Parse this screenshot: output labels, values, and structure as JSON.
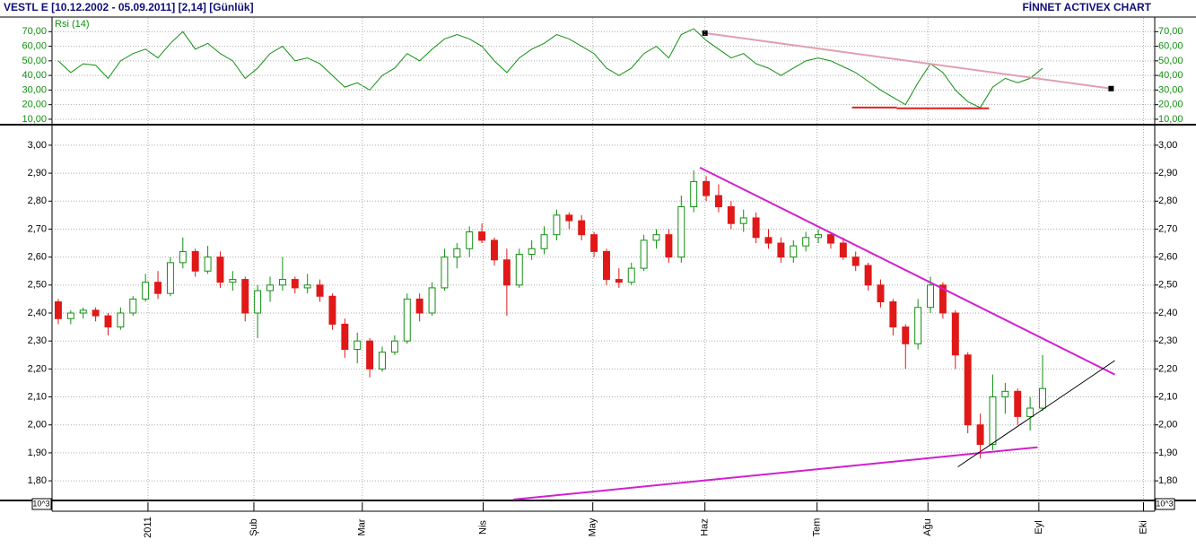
{
  "header": {
    "title": "VESTL E  [10.12.2002 - 05.09.2011]  [2,14]  [Günlük]",
    "brand": "FİNNET ACTIVEX CHART"
  },
  "chart_data": [
    {
      "type": "line",
      "label": "Rsi (14)",
      "color": "#109010",
      "ylim": [
        6.9,
        79.4
      ],
      "xlim": [
        -0.5,
        88
      ],
      "yticks": [
        {
          "value": 10,
          "label": "10,00"
        },
        {
          "value": 20,
          "label": "20,00"
        },
        {
          "value": 30,
          "label": "30,00"
        },
        {
          "value": 40,
          "label": "40,00"
        },
        {
          "value": 50,
          "label": "50,00"
        },
        {
          "value": 60,
          "label": "60,00"
        },
        {
          "value": 70,
          "label": "70,00"
        }
      ],
      "values": [
        50,
        42,
        48,
        47,
        38,
        50,
        55,
        58,
        52,
        62,
        70,
        58,
        62,
        55,
        50,
        38,
        45,
        55,
        60,
        50,
        52,
        48,
        40,
        32,
        35,
        30,
        40,
        45,
        55,
        50,
        58,
        65,
        68,
        65,
        60,
        50,
        42,
        52,
        58,
        62,
        68,
        65,
        60,
        55,
        45,
        40,
        45,
        55,
        60,
        52,
        68,
        72,
        64,
        58,
        52,
        55,
        48,
        45,
        40,
        45,
        50,
        52,
        50,
        46,
        42,
        36,
        30,
        25,
        20,
        35,
        48,
        42,
        30,
        22,
        18,
        32,
        38,
        35,
        38,
        45
      ],
      "trendlines": [
        {
          "x": [
            51.9,
            84.5
          ],
          "y": [
            69,
            31
          ],
          "color": "#e0a0b0",
          "markers": true
        },
        {
          "x": [
            63.7,
            67.3
          ],
          "y": [
            18,
            18
          ],
          "color": "#e02020"
        },
        {
          "x": [
            67.3,
            74.7
          ],
          "y": [
            17.5,
            17.5
          ],
          "color": "#e02020"
        }
      ],
      "grid": true
    },
    {
      "type": "candlestick",
      "up_color": "#109010",
      "down_color": "#e01818",
      "ylim": [
        1.733,
        3.067
      ],
      "xlim": [
        -0.5,
        88
      ],
      "scale_label": "10^3",
      "yticks": [
        {
          "value": 1.8,
          "label": "1,80"
        },
        {
          "value": 1.9,
          "label": "1,90"
        },
        {
          "value": 2.0,
          "label": "2,00"
        },
        {
          "value": 2.1,
          "label": "2,10"
        },
        {
          "value": 2.2,
          "label": "2,20"
        },
        {
          "value": 2.3,
          "label": "2,30"
        },
        {
          "value": 2.4,
          "label": "2,40"
        },
        {
          "value": 2.5,
          "label": "2,50"
        },
        {
          "value": 2.6,
          "label": "2,60"
        },
        {
          "value": 2.7,
          "label": "2,70"
        },
        {
          "value": 2.8,
          "label": "2,80"
        },
        {
          "value": 2.9,
          "label": "2,90"
        },
        {
          "value": 3.0,
          "label": "3,00"
        }
      ],
      "xticks": [
        {
          "value": 7.2,
          "label": "2011"
        },
        {
          "value": 15.7,
          "label": "Şub"
        },
        {
          "value": 24.4,
          "label": "Mar"
        },
        {
          "value": 34.1,
          "label": "Nis"
        },
        {
          "value": 42.9,
          "label": "May"
        },
        {
          "value": 51.9,
          "label": "Haz"
        },
        {
          "value": 60.9,
          "label": "Tem"
        },
        {
          "value": 69.8,
          "label": "Ağu"
        },
        {
          "value": 78.7,
          "label": "Eyl"
        },
        {
          "value": 87.1,
          "label": "Eki"
        }
      ],
      "open": [
        2.44,
        2.38,
        2.4,
        2.41,
        2.39,
        2.35,
        2.4,
        2.45,
        2.51,
        2.47,
        2.58,
        2.62,
        2.55,
        2.6,
        2.51,
        2.52,
        2.4,
        2.48,
        2.5,
        2.52,
        2.49,
        2.5,
        2.46,
        2.36,
        2.27,
        2.3,
        2.2,
        2.26,
        2.3,
        2.45,
        2.4,
        2.49,
        2.6,
        2.63,
        2.69,
        2.66,
        2.59,
        2.5,
        2.61,
        2.63,
        2.68,
        2.75,
        2.73,
        2.68,
        2.62,
        2.52,
        2.51,
        2.56,
        2.66,
        2.68,
        2.6,
        2.78,
        2.87,
        2.82,
        2.78,
        2.72,
        2.74,
        2.67,
        2.65,
        2.6,
        2.64,
        2.67,
        2.68,
        2.65,
        2.6,
        2.57,
        2.5,
        2.44,
        2.35,
        2.29,
        2.42,
        2.5,
        2.4,
        2.25,
        2.0,
        1.93,
        2.1,
        2.12,
        2.03,
        2.06
      ],
      "high": [
        2.45,
        2.41,
        2.42,
        2.42,
        2.4,
        2.42,
        2.46,
        2.54,
        2.55,
        2.6,
        2.67,
        2.63,
        2.64,
        2.62,
        2.55,
        2.53,
        2.5,
        2.53,
        2.6,
        2.53,
        2.54,
        2.52,
        2.47,
        2.38,
        2.33,
        2.31,
        2.28,
        2.32,
        2.47,
        2.47,
        2.51,
        2.63,
        2.65,
        2.71,
        2.72,
        2.67,
        2.63,
        2.63,
        2.66,
        2.71,
        2.77,
        2.76,
        2.75,
        2.69,
        2.63,
        2.56,
        2.58,
        2.68,
        2.7,
        2.7,
        2.82,
        2.91,
        2.89,
        2.86,
        2.8,
        2.77,
        2.76,
        2.7,
        2.67,
        2.66,
        2.69,
        2.7,
        2.69,
        2.67,
        2.62,
        2.58,
        2.52,
        2.45,
        2.36,
        2.45,
        2.53,
        2.51,
        2.41,
        2.26,
        2.04,
        2.18,
        2.15,
        2.13,
        2.1,
        2.25
      ],
      "low": [
        2.36,
        2.36,
        2.38,
        2.37,
        2.32,
        2.34,
        2.39,
        2.44,
        2.45,
        2.46,
        2.56,
        2.53,
        2.54,
        2.49,
        2.48,
        2.37,
        2.31,
        2.44,
        2.48,
        2.47,
        2.47,
        2.44,
        2.34,
        2.24,
        2.22,
        2.17,
        2.19,
        2.25,
        2.29,
        2.37,
        2.39,
        2.48,
        2.56,
        2.6,
        2.65,
        2.57,
        2.39,
        2.49,
        2.59,
        2.61,
        2.66,
        2.7,
        2.66,
        2.6,
        2.5,
        2.49,
        2.5,
        2.55,
        2.63,
        2.58,
        2.58,
        2.76,
        2.8,
        2.76,
        2.7,
        2.69,
        2.65,
        2.63,
        2.58,
        2.58,
        2.62,
        2.65,
        2.63,
        2.59,
        2.55,
        2.48,
        2.42,
        2.32,
        2.2,
        2.27,
        2.4,
        2.38,
        2.2,
        1.97,
        1.88,
        1.91,
        2.04,
        2.0,
        1.98,
        2.05
      ],
      "close": [
        2.38,
        2.4,
        2.41,
        2.39,
        2.35,
        2.4,
        2.45,
        2.51,
        2.47,
        2.58,
        2.62,
        2.55,
        2.6,
        2.51,
        2.52,
        2.4,
        2.48,
        2.5,
        2.52,
        2.49,
        2.5,
        2.46,
        2.36,
        2.27,
        2.3,
        2.2,
        2.26,
        2.3,
        2.45,
        2.4,
        2.49,
        2.6,
        2.63,
        2.69,
        2.66,
        2.59,
        2.5,
        2.61,
        2.63,
        2.68,
        2.75,
        2.73,
        2.68,
        2.62,
        2.52,
        2.51,
        2.56,
        2.66,
        2.68,
        2.6,
        2.78,
        2.87,
        2.82,
        2.78,
        2.72,
        2.74,
        2.67,
        2.65,
        2.6,
        2.64,
        2.67,
        2.68,
        2.65,
        2.6,
        2.57,
        2.5,
        2.44,
        2.35,
        2.29,
        2.42,
        2.5,
        2.4,
        2.25,
        2.0,
        1.93,
        2.1,
        2.12,
        2.03,
        2.06,
        2.13
      ],
      "trendlines": [
        {
          "x": [
            51.5,
            84.8
          ],
          "y": [
            2.92,
            2.18
          ],
          "color": "#d020d0"
        },
        {
          "x": [
            36.5,
            78.6
          ],
          "y": [
            1.733,
            1.92
          ],
          "color": "#d020d0"
        },
        {
          "x": [
            72.2,
            84.8
          ],
          "y": [
            1.85,
            2.23
          ],
          "color": "#000000"
        }
      ],
      "grid": true
    }
  ]
}
